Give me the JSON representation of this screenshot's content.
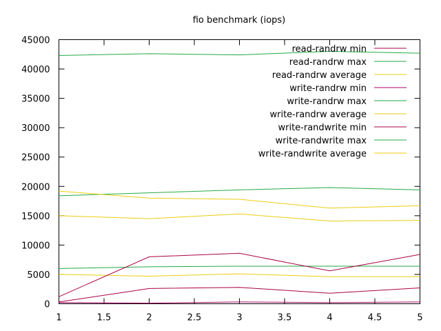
{
  "chart_data": {
    "type": "line",
    "title": "fio benchmark (iops)",
    "xlabel": "",
    "ylabel": "",
    "xlim": [
      1,
      5
    ],
    "ylim": [
      0,
      45000
    ],
    "x_ticks": [
      "1",
      "1.5",
      "2",
      "2.5",
      "3",
      "3.5",
      "4",
      "4.5",
      "5"
    ],
    "y_ticks": [
      "0",
      "5000",
      "10000",
      "15000",
      "20000",
      "25000",
      "30000",
      "35000",
      "40000",
      "45000"
    ],
    "grid": false,
    "legend_position": "top-right",
    "x": [
      1,
      2,
      3,
      4,
      5
    ],
    "series": [
      {
        "name": "read-randrw min",
        "color": "#aa0044",
        "values": [
          300,
          2600,
          2800,
          1800,
          2700
        ]
      },
      {
        "name": "read-randrw max",
        "color": "#22aa44",
        "values": [
          42300,
          42600,
          42400,
          43000,
          42700
        ]
      },
      {
        "name": "read-randrw average",
        "color": "#eecc11",
        "values": [
          15000,
          14500,
          15300,
          14100,
          14200
        ]
      },
      {
        "name": "write-randrw min",
        "color": "#aa0066",
        "values": [
          200,
          100,
          300,
          200,
          300
        ]
      },
      {
        "name": "write-randrw max",
        "color": "#22aa44",
        "values": [
          6000,
          6300,
          6400,
          6400,
          6400
        ]
      },
      {
        "name": "write-randrw average",
        "color": "#eecc11",
        "values": [
          5000,
          4700,
          5100,
          4600,
          4600
        ]
      },
      {
        "name": "write-randwrite min",
        "color": "#aa0044",
        "values": [
          1200,
          8000,
          8600,
          5600,
          8400
        ]
      },
      {
        "name": "write-randwrite max",
        "color": "#22aa44",
        "values": [
          18400,
          18900,
          19400,
          19800,
          19400
        ]
      },
      {
        "name": "write-randwrite average",
        "color": "#eecc11",
        "values": [
          19200,
          18000,
          17800,
          16300,
          16700
        ]
      }
    ]
  }
}
